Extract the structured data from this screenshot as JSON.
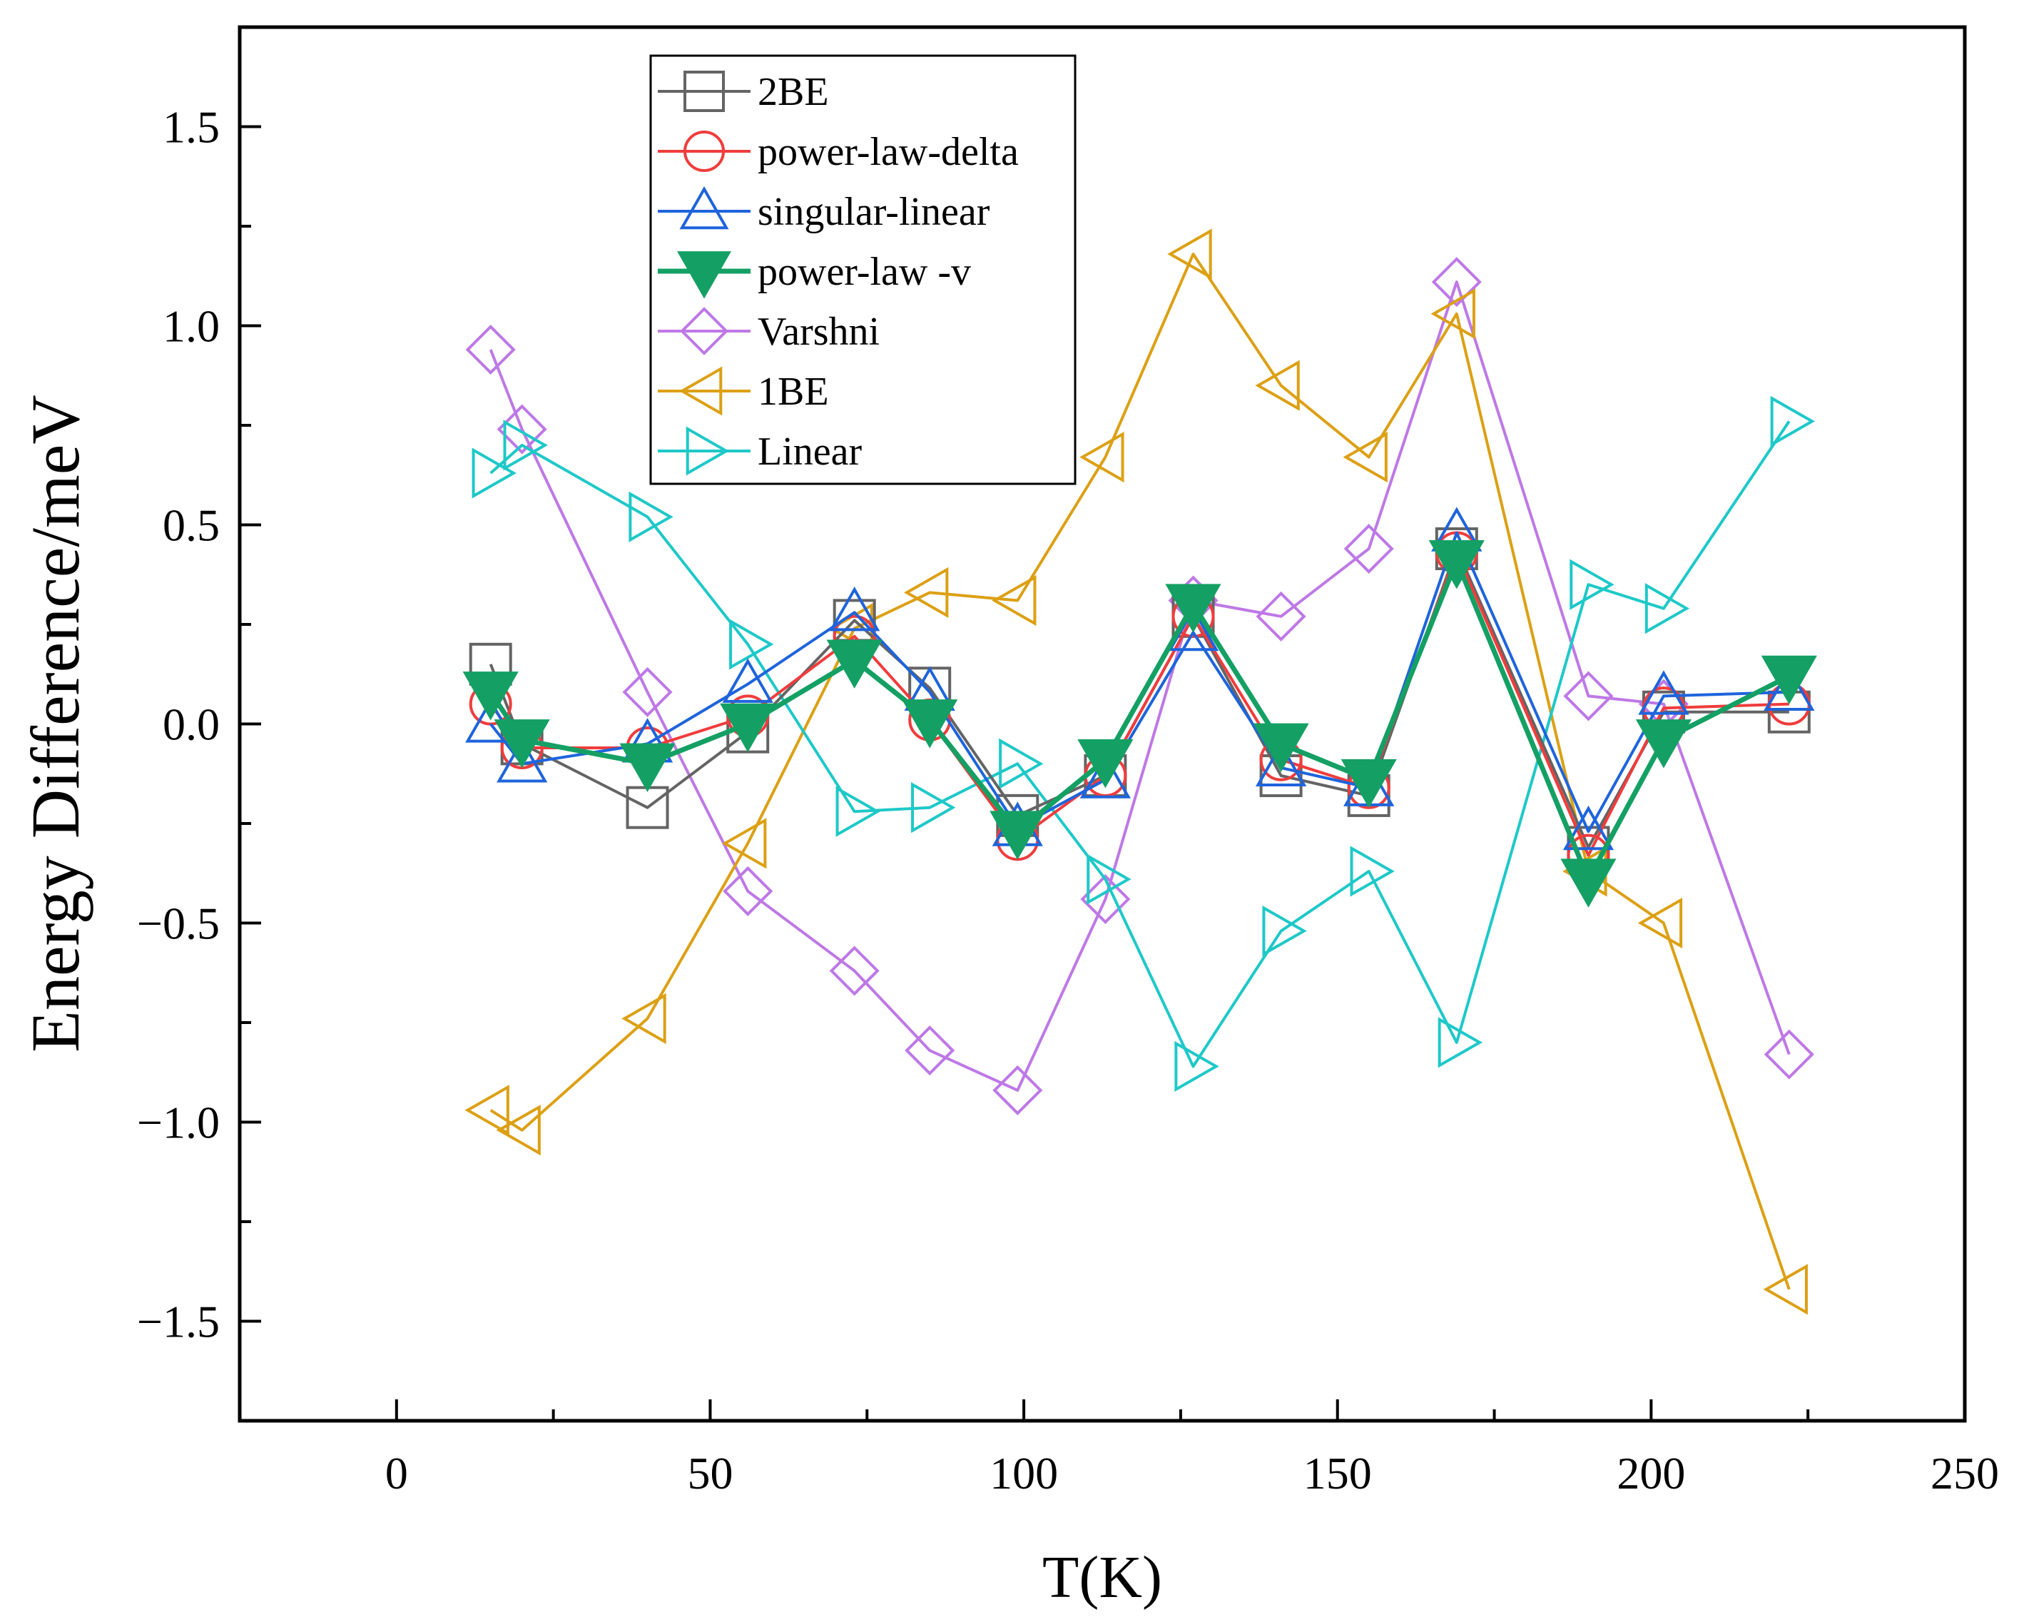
{
  "chart_data": {
    "type": "line",
    "title": "",
    "xlabel": "T(K)",
    "ylabel": "Energy Difference/meV",
    "xlim": [
      -25,
      250
    ],
    "ylim": [
      -1.75,
      1.75
    ],
    "xticks": [
      0,
      50,
      100,
      150,
      200,
      250
    ],
    "xtick_labels": [
      "0",
      "50",
      "100",
      "150",
      "200",
      "250"
    ],
    "yticks": [
      -1.5,
      -1.0,
      -0.5,
      0.0,
      0.5,
      1.0,
      1.5
    ],
    "ytick_labels": [
      "−1.5",
      "−1.0",
      "−0.5",
      "0.0",
      "0.5",
      "1.0",
      "1.5"
    ],
    "grid": false,
    "legend_position": "top-left",
    "series": [
      {
        "name": "2BE",
        "color": "#646464",
        "marker": "square",
        "filled": false,
        "x": [
          15,
          20,
          40,
          56,
          73,
          85,
          99,
          113,
          127,
          141,
          155,
          169,
          190,
          202,
          222
        ],
        "y": [
          0.15,
          -0.05,
          -0.21,
          -0.02,
          0.26,
          0.09,
          -0.23,
          -0.13,
          0.27,
          -0.13,
          -0.18,
          0.44,
          -0.31,
          0.03,
          0.03
        ]
      },
      {
        "name": "power-law-delta",
        "color": "#f03c3c",
        "marker": "circle",
        "filled": false,
        "x": [
          15,
          20,
          40,
          56,
          73,
          85,
          99,
          113,
          127,
          141,
          155,
          169,
          190,
          202,
          222
        ],
        "y": [
          0.05,
          -0.06,
          -0.06,
          0.02,
          0.22,
          0.01,
          -0.29,
          -0.13,
          0.27,
          -0.09,
          -0.16,
          0.43,
          -0.33,
          0.04,
          0.05
        ]
      },
      {
        "name": "singular-linear",
        "color": "#1e64dc",
        "marker": "triangle-up",
        "filled": false,
        "x": [
          15,
          20,
          40,
          56,
          73,
          85,
          99,
          113,
          127,
          141,
          155,
          169,
          190,
          202,
          222
        ],
        "y": [
          0.0,
          -0.1,
          -0.05,
          0.1,
          0.28,
          0.08,
          -0.26,
          -0.14,
          0.23,
          -0.11,
          -0.16,
          0.48,
          -0.27,
          0.07,
          0.08
        ]
      },
      {
        "name": "power-law -v",
        "color": "#14a064",
        "marker": "triangle-down",
        "filled": true,
        "x": [
          15,
          20,
          40,
          56,
          73,
          85,
          99,
          113,
          127,
          141,
          155,
          169,
          190,
          202,
          222
        ],
        "y": [
          0.08,
          -0.04,
          -0.1,
          0.0,
          0.16,
          0.01,
          -0.27,
          -0.09,
          0.3,
          -0.05,
          -0.14,
          0.41,
          -0.39,
          -0.04,
          0.12
        ]
      },
      {
        "name": "Varshni",
        "color": "#be78e6",
        "marker": "diamond",
        "filled": false,
        "x": [
          15,
          20,
          40,
          56,
          73,
          85,
          99,
          113,
          127,
          141,
          155,
          169,
          190,
          202,
          222
        ],
        "y": [
          0.94,
          0.74,
          0.08,
          -0.42,
          -0.62,
          -0.82,
          -0.92,
          -0.44,
          0.31,
          0.27,
          0.44,
          1.11,
          0.07,
          0.05,
          -0.83
        ]
      },
      {
        "name": "1BE",
        "color": "#dca014",
        "marker": "triangle-left",
        "filled": false,
        "x": [
          15,
          20,
          40,
          56,
          73,
          85,
          99,
          113,
          127,
          141,
          155,
          169,
          190,
          202,
          222
        ],
        "y": [
          -0.97,
          -1.02,
          -0.74,
          -0.3,
          0.24,
          0.33,
          0.31,
          0.67,
          1.18,
          0.85,
          0.67,
          1.03,
          -0.37,
          -0.5,
          -1.42
        ]
      },
      {
        "name": "Linear",
        "color": "#1ec8c8",
        "marker": "triangle-right",
        "filled": false,
        "x": [
          15,
          20,
          40,
          56,
          73,
          85,
          99,
          113,
          127,
          141,
          155,
          169,
          190,
          202,
          222
        ],
        "y": [
          0.63,
          0.7,
          0.52,
          0.2,
          -0.22,
          -0.21,
          -0.1,
          -0.39,
          -0.86,
          -0.52,
          -0.37,
          -0.8,
          0.35,
          0.29,
          0.76
        ]
      }
    ]
  }
}
